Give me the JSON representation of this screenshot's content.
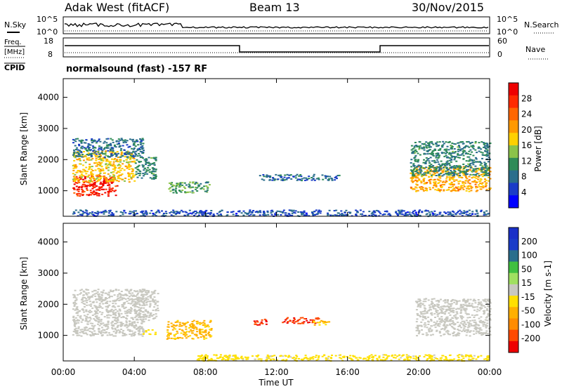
{
  "header": {
    "station": "Adak West (fitACF)",
    "beam": "Beam 13",
    "date": "30/Nov/2015"
  },
  "noise_panel": {
    "left_label": "N.Sky",
    "right_label": "N.Search",
    "left_ticks": [
      "10^5",
      "10^0"
    ],
    "right_ticks": [
      "10^5",
      "10^0"
    ]
  },
  "freq_panel": {
    "left_label_1": "Freq.",
    "left_label_2": "[MHz]",
    "left_ticks": [
      "18",
      "8"
    ],
    "right_label": "Nave",
    "right_ticks": [
      "60",
      "0"
    ],
    "cpid_label": "CPID",
    "cpid_text": "normalsound (fast) -157 RF"
  },
  "colors": {
    "power_scale": [
      "#0000ff",
      "#1a3cc8",
      "#2a6e8c",
      "#2e8b57",
      "#8bc34a",
      "#ffd000",
      "#ff9900",
      "#ff6600",
      "#ff2a00",
      "#ee0000"
    ],
    "velocity_scale": [
      "#ee0000",
      "#ff4a00",
      "#ff8c00",
      "#ffb000",
      "#ffe000",
      "#c8c8c0",
      "#a0e060",
      "#40c040",
      "#2a6e8c",
      "#1a3cc8",
      "#1a30c8"
    ]
  },
  "chart_data": [
    {
      "type": "heatmap",
      "title": "",
      "xlabel": "Time UT",
      "ylabel": "Slant Range [km]",
      "xticks": [
        "00:00",
        "04:00",
        "08:00",
        "12:00",
        "16:00",
        "20:00",
        "00:00"
      ],
      "yticks": [
        "1000",
        "2000",
        "3000",
        "4000"
      ],
      "xlim": [
        0,
        24
      ],
      "ylim": [
        180,
        4600
      ],
      "colorbar": {
        "label": "Power [dB]",
        "ticks": [
          "28",
          "24",
          "20",
          "16",
          "12",
          "8",
          "4"
        ],
        "range": [
          0,
          32
        ]
      },
      "regions": [
        {
          "t_start": 0.5,
          "t_end": 3.0,
          "r_low": 850,
          "r_high": 1500,
          "value": 28
        },
        {
          "t_start": 0.5,
          "t_end": 4.0,
          "r_low": 1300,
          "r_high": 2300,
          "value": 18
        },
        {
          "t_start": 0.5,
          "t_end": 4.5,
          "r_low": 2100,
          "r_high": 2700,
          "value": 8
        },
        {
          "t_start": 4.0,
          "t_end": 5.2,
          "r_low": 1400,
          "r_high": 2100,
          "value": 10
        },
        {
          "t_start": 5.9,
          "t_end": 8.2,
          "r_low": 950,
          "r_high": 1300,
          "value": 12
        },
        {
          "t_start": 11.0,
          "t_end": 15.5,
          "r_low": 1350,
          "r_high": 1550,
          "value": 8
        },
        {
          "t_start": 19.5,
          "t_end": 24.0,
          "r_low": 1000,
          "r_high": 1800,
          "value": 20
        },
        {
          "t_start": 19.5,
          "t_end": 24.0,
          "r_low": 1500,
          "r_high": 2600,
          "value": 10
        },
        {
          "t_start": 0.5,
          "t_end": 24.0,
          "r_low": 200,
          "r_high": 400,
          "value": 6
        }
      ]
    },
    {
      "type": "heatmap",
      "title": "",
      "xlabel": "Time UT",
      "ylabel": "Slant Range [km]",
      "xticks": [
        "00:00",
        "04:00",
        "08:00",
        "12:00",
        "16:00",
        "20:00",
        "00:00"
      ],
      "yticks": [
        "1000",
        "2000",
        "3000",
        "4000"
      ],
      "xlim": [
        0,
        24
      ],
      "ylim": [
        180,
        4600
      ],
      "colorbar": {
        "label": "Velocity [m s-1]",
        "ticks": [
          "200",
          "100",
          "50",
          "15",
          "-15",
          "-50",
          "-100",
          "-200"
        ],
        "range": [
          -250,
          250
        ]
      },
      "regions": [
        {
          "t_start": 0.5,
          "t_end": 4.5,
          "r_low": 1000,
          "r_high": 2500,
          "value": 0
        },
        {
          "t_start": 4.0,
          "t_end": 5.3,
          "r_low": 1500,
          "r_high": 2500,
          "value": 0
        },
        {
          "t_start": 4.3,
          "t_end": 5.2,
          "r_low": 1050,
          "r_high": 1200,
          "value": -30
        },
        {
          "t_start": 5.8,
          "t_end": 8.3,
          "r_low": 900,
          "r_high": 1500,
          "value": -80
        },
        {
          "t_start": 10.7,
          "t_end": 11.4,
          "r_low": 1350,
          "r_high": 1550,
          "value": -200
        },
        {
          "t_start": 12.3,
          "t_end": 14.4,
          "r_low": 1400,
          "r_high": 1600,
          "value": -200
        },
        {
          "t_start": 14.0,
          "t_end": 15.0,
          "r_low": 1350,
          "r_high": 1500,
          "value": -70
        },
        {
          "t_start": 19.8,
          "t_end": 24.0,
          "r_low": 1000,
          "r_high": 2200,
          "value": 0
        },
        {
          "t_start": 7.5,
          "t_end": 24.0,
          "r_low": 200,
          "r_high": 400,
          "value": -40
        }
      ]
    }
  ]
}
